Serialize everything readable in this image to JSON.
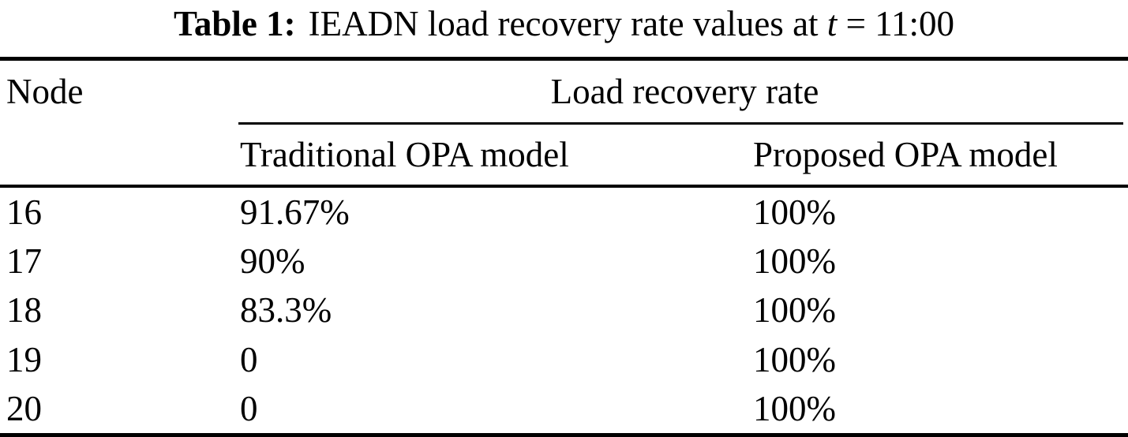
{
  "caption": {
    "label": "Table 1:",
    "text_before_var": "IEADN load recovery rate values at",
    "variable": "t",
    "text_after_var": "= 11:00"
  },
  "table": {
    "header": {
      "node": "Node",
      "group": "Load recovery rate",
      "traditional": "Traditional OPA model",
      "proposed": "Proposed OPA model"
    },
    "rows": [
      {
        "node": "16",
        "traditional": "91.67%",
        "proposed": "100%"
      },
      {
        "node": "17",
        "traditional": "90%",
        "proposed": "100%"
      },
      {
        "node": "18",
        "traditional": "83.3%",
        "proposed": "100%"
      },
      {
        "node": "19",
        "traditional": "0",
        "proposed": "100%"
      },
      {
        "node": "20",
        "traditional": "0",
        "proposed": "100%"
      }
    ],
    "colors": {
      "text": "#000000",
      "background": "#ffffff",
      "rule": "#000000"
    }
  }
}
